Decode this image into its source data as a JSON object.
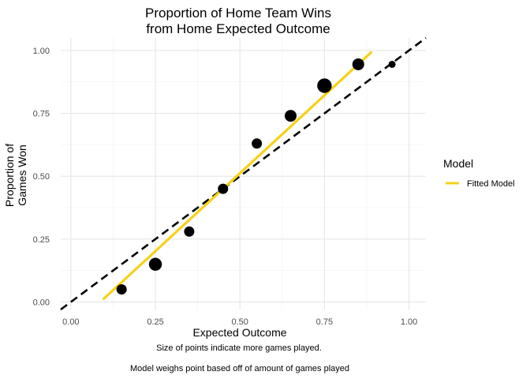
{
  "chart_data": {
    "type": "scatter",
    "title_lines": [
      "Proportion of Home Team Wins",
      "from Home Expected Outcome"
    ],
    "xlabel": "Expected Outcome",
    "ylabel_lines": [
      "Proportion of",
      "Games Won"
    ],
    "xlim": [
      -0.03,
      1.05
    ],
    "ylim": [
      -0.03,
      1.05
    ],
    "x_ticks": [
      0.0,
      0.25,
      0.5,
      0.75,
      1.0
    ],
    "x_tick_labels": [
      "0.00",
      "0.25",
      "0.50",
      "0.75",
      "1.00"
    ],
    "y_ticks": [
      0.0,
      0.25,
      0.5,
      0.75,
      1.0
    ],
    "y_tick_labels": [
      "0.00",
      "0.25",
      "0.50",
      "0.75",
      "1.00"
    ],
    "grid": true,
    "points": {
      "x": [
        0.15,
        0.25,
        0.35,
        0.45,
        0.55,
        0.65,
        0.75,
        0.85,
        0.95
      ],
      "y": [
        0.05,
        0.15,
        0.28,
        0.45,
        0.63,
        0.74,
        0.86,
        0.945,
        0.945
      ],
      "size_rank": [
        3,
        5,
        3,
        3,
        3,
        4,
        6,
        4,
        1
      ]
    },
    "reference_line": {
      "slope": 1,
      "intercept": 0,
      "style": "dashed",
      "color": "#000000"
    },
    "fitted_line": {
      "x": [
        0.095,
        0.89
      ],
      "y": [
        0.01,
        0.995
      ],
      "color": "#F7D117"
    },
    "legend": {
      "title": "Model",
      "position": "right",
      "items": [
        {
          "label": "Fitted Model",
          "color": "#F7D117"
        }
      ]
    },
    "captions": [
      "Size of points indicate more games played.",
      "Model weighs point based off of amount of games played"
    ]
  }
}
